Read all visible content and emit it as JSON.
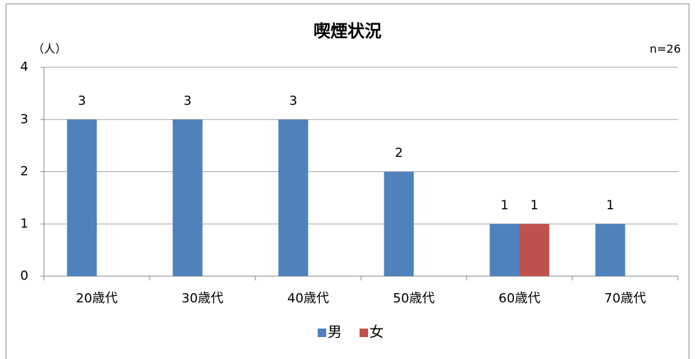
{
  "chart_data": {
    "type": "bar",
    "title": "喫煙状況",
    "y_label": "（人）",
    "annotation": "n=26",
    "categories": [
      "20歳代",
      "30歳代",
      "40歳代",
      "50歳代",
      "60歳代",
      "70歳代"
    ],
    "series": [
      {
        "name": "男",
        "color": "#4f81bd",
        "values": [
          3,
          3,
          3,
          2,
          1,
          1
        ]
      },
      {
        "name": "女",
        "color": "#c0504d",
        "values": [
          null,
          null,
          null,
          null,
          1,
          null
        ]
      }
    ],
    "ylim": [
      0,
      4
    ],
    "yticks": [
      0,
      1,
      2,
      3,
      4
    ],
    "grid": true,
    "legend": "bottom"
  }
}
